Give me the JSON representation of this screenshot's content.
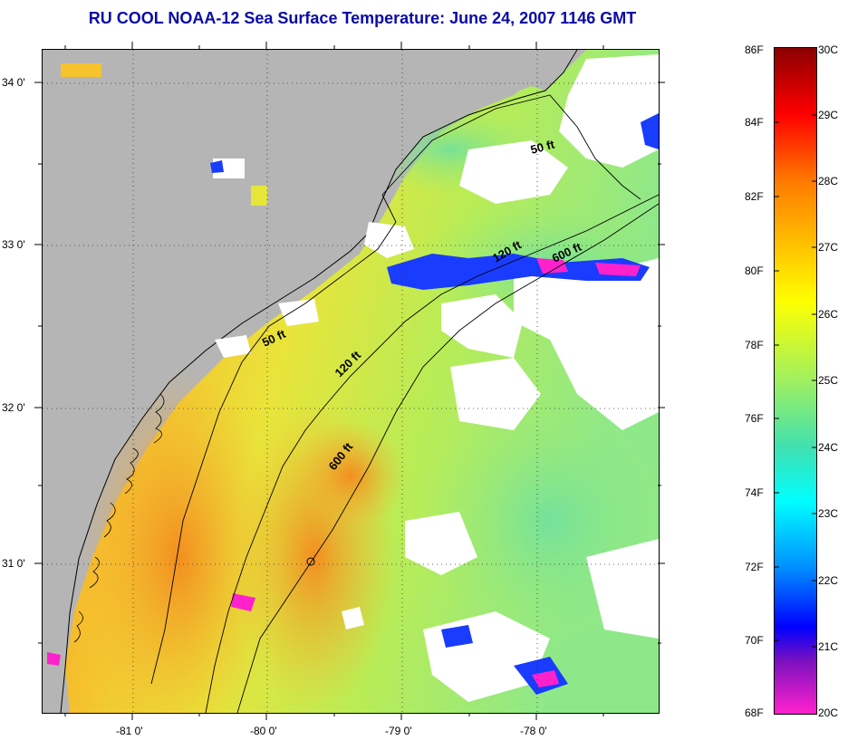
{
  "title": "RU COOL  NOAA-12  Sea Surface Temperature:  June 24, 2007 1146 GMT",
  "map": {
    "lat_labels": [
      "34 0'",
      "33 0'",
      "32 0'",
      "31 0'"
    ],
    "lon_labels": [
      "-81 0'",
      "-80 0'",
      "-79 0'",
      "-78 0'"
    ],
    "contour_labels": [
      "50 ft",
      "120 ft",
      "600 ft",
      "50 ft",
      "120 ft",
      "600 ft"
    ],
    "colors": {
      "land": "#b5b5b5",
      "cloud": "#ffffff",
      "coast": "#000000",
      "warm": "#f5a623",
      "mid": "#d7e83a",
      "cool": "#7fe07a",
      "cold": "#1030ff",
      "coldest": "#ff1fb8"
    }
  },
  "colorbar": {
    "f_labels": [
      "86F",
      "84F",
      "82F",
      "80F",
      "78F",
      "76F",
      "74F",
      "72F",
      "70F",
      "68F"
    ],
    "c_labels": [
      "30C",
      "29C",
      "28C",
      "27C",
      "26C",
      "25C",
      "24C",
      "23C",
      "22C",
      "21C",
      "20C"
    ],
    "stops": [
      "#8b0000",
      "#ff0000",
      "#ff7a00",
      "#ffd700",
      "#ffff00",
      "#a8f060",
      "#40e0a0",
      "#00ffff",
      "#0090ff",
      "#0000ff",
      "#6a0dad",
      "#ff22cc"
    ]
  }
}
